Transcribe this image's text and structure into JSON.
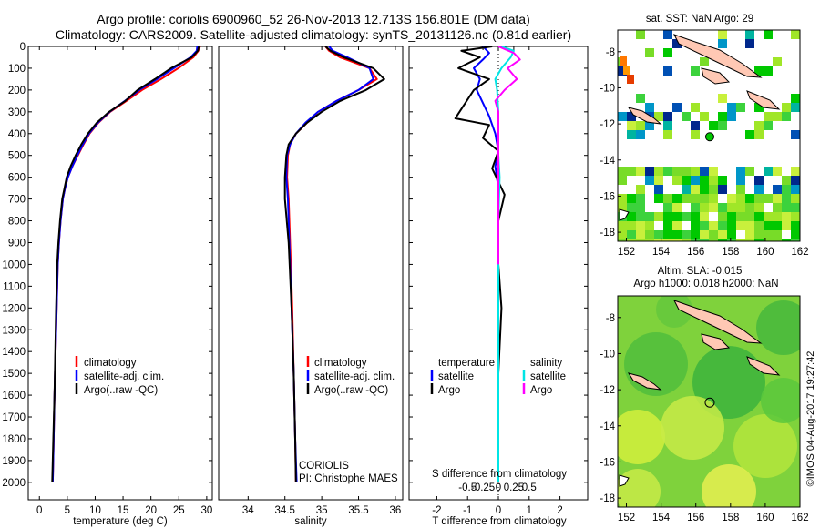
{
  "title": {
    "line1": "Argo profile: coriolis 6900960_52 26-Nov-2013 12.713S 156.801E (DM data)",
    "line2": "Climatology: CARS2009. Satellite-adjusted climatology: synTS_20131126.nc (0.81d earlier)"
  },
  "colors": {
    "climatology": "#ff0000",
    "satellite": "#0000ff",
    "argo": "#000000",
    "temp_sat_diff": "#0000ff",
    "sal_sat_diff": "#00e5e5",
    "sal_argo_diff": "#ff00ff"
  },
  "chart_data": [
    {
      "id": "temperature",
      "type": "line",
      "xlabel": "temperature (deg C)",
      "ylabel": "",
      "xlim": [
        -2,
        31
      ],
      "ylim": [
        2080,
        0
      ],
      "xticks": [
        0,
        5,
        10,
        15,
        20,
        25,
        30
      ],
      "yticks": [
        0,
        100,
        200,
        300,
        400,
        500,
        600,
        700,
        800,
        900,
        1000,
        1100,
        1200,
        1300,
        1400,
        1500,
        1600,
        1700,
        1800,
        1900,
        2000
      ],
      "legend": [
        "climatology",
        "satellite-adj. clim.",
        "Argo(..raw -QC)"
      ],
      "series": [
        {
          "name": "climatology",
          "color_key": "climatology",
          "x": [
            28.8,
            28.5,
            27.6,
            24.9,
            21.8,
            18.4,
            15.6,
            12.7,
            10.6,
            9.0,
            7.9,
            6.9,
            5.9,
            5.1,
            4.6,
            4.2,
            3.8,
            3.5,
            3.3,
            3.1,
            2.9,
            2.7,
            2.55,
            2.4
          ],
          "y": [
            0,
            20,
            50,
            100,
            150,
            200,
            250,
            300,
            350,
            400,
            450,
            500,
            550,
            600,
            650,
            700,
            800,
            900,
            1000,
            1200,
            1400,
            1600,
            1800,
            2000
          ]
        },
        {
          "name": "satellite-adj. clim.",
          "color_key": "satellite",
          "x": [
            28.3,
            28.2,
            27.1,
            24.1,
            21.1,
            17.9,
            15.3,
            12.6,
            10.5,
            8.9,
            7.8,
            6.8,
            5.9,
            5.1,
            4.6,
            4.2,
            3.8,
            3.5,
            3.3,
            3.1,
            2.9,
            2.7,
            2.55,
            2.4
          ],
          "y": [
            0,
            20,
            50,
            100,
            150,
            200,
            250,
            300,
            350,
            400,
            450,
            500,
            550,
            600,
            650,
            700,
            800,
            900,
            1000,
            1200,
            1400,
            1600,
            1800,
            2000
          ]
        },
        {
          "name": "Argo(..raw -QC)",
          "color_key": "argo",
          "x": [
            28.6,
            28.4,
            27.3,
            23.6,
            20.7,
            17.6,
            15.4,
            12.5,
            10.3,
            8.7,
            7.5,
            6.5,
            5.6,
            4.9,
            4.5,
            4.1,
            3.7,
            3.4,
            3.2,
            3.0,
            2.85,
            2.7,
            2.5,
            2.3
          ],
          "y": [
            0,
            20,
            50,
            100,
            150,
            200,
            250,
            300,
            350,
            400,
            450,
            500,
            550,
            600,
            650,
            700,
            800,
            900,
            1000,
            1200,
            1400,
            1600,
            1800,
            2000
          ]
        }
      ]
    },
    {
      "id": "salinity",
      "type": "line",
      "xlabel": "salinity",
      "xlim": [
        33.6,
        36.1
      ],
      "ylim": [
        2080,
        0
      ],
      "xticks": [
        34,
        34.5,
        35,
        35.5,
        36
      ],
      "tick_labels": [
        "34",
        "34.5",
        "35",
        "35.5",
        "36"
      ],
      "legend": [
        "climatology",
        "satellite-adj. clim.",
        "Argo(..raw -QC)"
      ],
      "annotation": [
        "CORIOLIS",
        "PI: Christophe MAES"
      ],
      "series": [
        {
          "name": "climatology",
          "color_key": "climatology",
          "x": [
            35.05,
            35.1,
            35.25,
            35.65,
            35.75,
            35.5,
            35.2,
            34.95,
            34.8,
            34.65,
            34.57,
            34.54,
            34.53,
            34.55,
            34.57,
            34.6,
            34.62,
            34.64,
            34.65
          ],
          "y": [
            0,
            20,
            50,
            100,
            150,
            200,
            250,
            300,
            350,
            400,
            450,
            500,
            600,
            700,
            900,
            1200,
            1500,
            1800,
            2000
          ]
        },
        {
          "name": "satellite-adj. clim.",
          "color_key": "satellite",
          "x": [
            35.1,
            35.15,
            35.35,
            35.65,
            35.7,
            35.5,
            35.2,
            34.95,
            34.78,
            34.65,
            34.57,
            34.53,
            34.52,
            34.54,
            34.56,
            34.59,
            34.62,
            34.64,
            34.66
          ],
          "y": [
            0,
            20,
            50,
            100,
            150,
            200,
            250,
            300,
            350,
            400,
            450,
            500,
            600,
            700,
            900,
            1200,
            1500,
            1800,
            2000
          ]
        },
        {
          "name": "Argo(..raw -QC)",
          "color_key": "argo",
          "x": [
            35.05,
            35.12,
            35.3,
            35.7,
            35.85,
            35.6,
            35.25,
            35.0,
            34.8,
            34.65,
            34.55,
            34.52,
            34.5,
            34.5,
            34.55,
            34.59,
            34.62,
            34.64,
            34.65
          ],
          "y": [
            0,
            20,
            50,
            100,
            150,
            200,
            250,
            300,
            350,
            400,
            450,
            500,
            600,
            700,
            900,
            1200,
            1500,
            1800,
            2000
          ]
        }
      ]
    },
    {
      "id": "differences",
      "type": "line",
      "xlabel": "T difference from climatology",
      "x2label": "S difference from climatology",
      "xlim": [
        -2.9,
        2.9
      ],
      "ylim": [
        2080,
        0
      ],
      "xticks": [
        -2,
        -1,
        0,
        1,
        2
      ],
      "x2ticks": [
        -0.5,
        -0.25,
        0,
        0.25,
        0.5
      ],
      "legend_temperature": {
        "title": "temperature",
        "items": [
          "satellite",
          "Argo"
        ]
      },
      "legend_salinity": {
        "title": "salinity",
        "items": [
          "satellite",
          "Argo"
        ]
      },
      "series": [
        {
          "name": "temperature satellite",
          "color_key": "temp_sat_diff",
          "x": [
            -0.5,
            -0.3,
            -0.5,
            -0.8,
            -0.6,
            -0.7,
            -0.5,
            -0.3,
            -0.1,
            0,
            -0.1,
            0,
            0,
            0,
            0,
            0
          ],
          "y": [
            0,
            30,
            60,
            100,
            150,
            200,
            260,
            320,
            400,
            480,
            550,
            650,
            800,
            1000,
            1500,
            2000
          ]
        },
        {
          "name": "temperature Argo",
          "color_key": "argo",
          "x": [
            -0.2,
            -1.2,
            -0.6,
            -1.3,
            -0.3,
            -0.8,
            -1.4,
            -0.3,
            -0.5,
            0,
            -0.2,
            0.2,
            0,
            0,
            0.1,
            0,
            0
          ],
          "y": [
            0,
            20,
            50,
            100,
            150,
            200,
            330,
            360,
            420,
            480,
            560,
            680,
            800,
            1000,
            1200,
            1500,
            2000
          ]
        },
        {
          "name": "salinity satellite",
          "color_key": "sal_sat_diff",
          "x": [
            0.05,
            0.25,
            0.2,
            0.05,
            -0.05,
            -0.02,
            0,
            -0.01,
            0,
            0.02,
            0,
            0,
            0,
            0
          ],
          "y": [
            0,
            20,
            50,
            100,
            150,
            200,
            300,
            400,
            500,
            600,
            800,
            1000,
            1500,
            2000
          ]
        },
        {
          "name": "salinity Argo",
          "color_key": "sal_argo_diff",
          "x": [
            0,
            0.25,
            0.35,
            0.15,
            0.3,
            0.1,
            -0.05,
            0,
            0,
            0,
            0,
            0
          ],
          "y": [
            0,
            30,
            60,
            100,
            150,
            200,
            250,
            300,
            400,
            500,
            700,
            1000
          ]
        }
      ]
    },
    {
      "id": "map_sst",
      "type": "heatmap",
      "title": "sat. SST: NaN  Argo: 29",
      "xlim": [
        151.5,
        162
      ],
      "ylim": [
        -18.5,
        -6.8
      ],
      "xticks": [
        152,
        154,
        156,
        158,
        160,
        162
      ],
      "yticks": [
        -8,
        -10,
        -12,
        -14,
        -16,
        -18
      ],
      "profile_location": [
        156.801,
        -12.713
      ]
    },
    {
      "id": "map_sla",
      "type": "heatmap",
      "title_lines": [
        "Altim. SLA: -0.015",
        "Argo h1000: 0.018 h2000: NaN"
      ],
      "xlim": [
        151.5,
        162
      ],
      "ylim": [
        -18.5,
        -6.8
      ],
      "xticks": [
        152,
        154,
        156,
        158,
        160,
        162
      ],
      "yticks": [
        -8,
        -10,
        -12,
        -14,
        -16,
        -18
      ],
      "profile_location": [
        156.801,
        -12.713
      ]
    }
  ],
  "watermark": "©IMOS 04-Aug-2017 19:27:42"
}
